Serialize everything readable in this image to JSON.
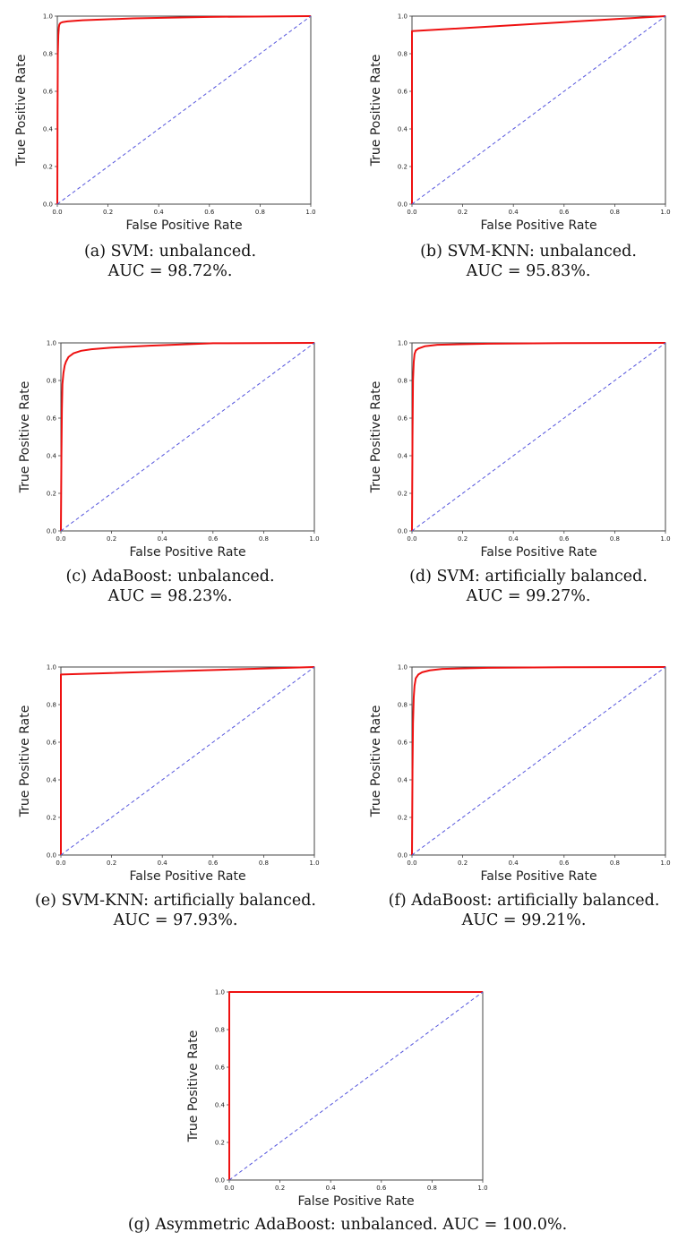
{
  "chart_data": [
    {
      "type": "line",
      "xlabel": "False Positive Rate",
      "ylabel": "True Positive Rate",
      "xlim": [
        0,
        1
      ],
      "ylim": [
        0,
        1
      ],
      "xticks": [
        "0.0",
        "0.2",
        "0.4",
        "0.6",
        "0.8",
        "1.0"
      ],
      "yticks": [
        "0.0",
        "0.2",
        "0.4",
        "0.6",
        "0.8",
        "1.0"
      ],
      "caption": "(a) SVM: unbalanced.",
      "auc_text": "AUC = 98.72%.",
      "series": [
        {
          "color": "#ee1111",
          "style": "solid",
          "x": [
            0,
            0.001,
            0.002,
            0.004,
            0.006,
            0.008,
            0.012,
            0.02,
            0.04,
            0.1,
            0.3,
            0.6,
            1.0
          ],
          "y": [
            0,
            0.5,
            0.8,
            0.9,
            0.94,
            0.955,
            0.963,
            0.968,
            0.972,
            0.978,
            0.988,
            0.996,
            1.0
          ]
        },
        {
          "color": "#5555dd",
          "style": "dashed",
          "x": [
            0,
            1
          ],
          "y": [
            0,
            1
          ]
        }
      ]
    },
    {
      "type": "line",
      "xlabel": "False Positive Rate",
      "ylabel": "True Positive Rate",
      "xlim": [
        0,
        1
      ],
      "ylim": [
        0,
        1
      ],
      "xticks": [
        "0.0",
        "0.2",
        "0.4",
        "0.6",
        "0.8",
        "1.0"
      ],
      "yticks": [
        "0.0",
        "0.2",
        "0.4",
        "0.6",
        "0.8",
        "1.0"
      ],
      "caption": "(b) SVM-KNN: unbalanced.",
      "auc_text": "AUC = 95.83%.",
      "series": [
        {
          "color": "#ee1111",
          "style": "solid",
          "x": [
            0,
            0,
            1.0
          ],
          "y": [
            0,
            0.92,
            1.0
          ]
        },
        {
          "color": "#5555dd",
          "style": "dashed",
          "x": [
            0,
            1
          ],
          "y": [
            0,
            1
          ]
        }
      ]
    },
    {
      "type": "line",
      "xlabel": "False Positive Rate",
      "ylabel": "True Positive Rate",
      "xlim": [
        0,
        1
      ],
      "ylim": [
        0,
        1
      ],
      "xticks": [
        "0.0",
        "0.2",
        "0.4",
        "0.6",
        "0.8",
        "1.0"
      ],
      "yticks": [
        "0.0",
        "0.2",
        "0.4",
        "0.6",
        "0.8",
        "1.0"
      ],
      "caption": "(c) AdaBoost: unbalanced.",
      "auc_text": "AUC = 98.23%.",
      "series": [
        {
          "color": "#ee1111",
          "style": "solid",
          "x": [
            0,
            0.002,
            0.004,
            0.006,
            0.01,
            0.015,
            0.02,
            0.03,
            0.05,
            0.08,
            0.12,
            0.2,
            0.35,
            0.6,
            1.0
          ],
          "y": [
            0,
            0.4,
            0.65,
            0.78,
            0.84,
            0.88,
            0.9,
            0.925,
            0.945,
            0.958,
            0.966,
            0.975,
            0.985,
            0.998,
            1.0
          ]
        },
        {
          "color": "#5555dd",
          "style": "dashed",
          "x": [
            0,
            1
          ],
          "y": [
            0,
            1
          ]
        }
      ]
    },
    {
      "type": "line",
      "xlabel": "False Positive Rate",
      "ylabel": "True Positive Rate",
      "xlim": [
        0,
        1
      ],
      "ylim": [
        0,
        1
      ],
      "xticks": [
        "0.0",
        "0.2",
        "0.4",
        "0.6",
        "0.8",
        "1.0"
      ],
      "yticks": [
        "0.0",
        "0.2",
        "0.4",
        "0.6",
        "0.8",
        "1.0"
      ],
      "caption": "(d) SVM: artificially balanced.",
      "auc_text": "AUC = 99.27%.",
      "series": [
        {
          "color": "#ee1111",
          "style": "solid",
          "x": [
            0,
            0.002,
            0.004,
            0.007,
            0.01,
            0.015,
            0.025,
            0.05,
            0.1,
            0.3,
            0.6,
            1.0
          ],
          "y": [
            0,
            0.5,
            0.8,
            0.9,
            0.94,
            0.96,
            0.97,
            0.982,
            0.99,
            0.996,
            0.999,
            1.0
          ]
        },
        {
          "color": "#5555dd",
          "style": "dashed",
          "x": [
            0,
            1
          ],
          "y": [
            0,
            1
          ]
        }
      ]
    },
    {
      "type": "line",
      "xlabel": "False Positive Rate",
      "ylabel": "True Positive Rate",
      "xlim": [
        0,
        1
      ],
      "ylim": [
        0,
        1
      ],
      "xticks": [
        "0.0",
        "0.2",
        "0.4",
        "0.6",
        "0.8",
        "1.0"
      ],
      "yticks": [
        "0.0",
        "0.2",
        "0.4",
        "0.6",
        "0.8",
        "1.0"
      ],
      "caption": "(e) SVM-KNN: artificially balanced.",
      "auc_text": "AUC = 97.93%.",
      "series": [
        {
          "color": "#ee1111",
          "style": "solid",
          "x": [
            0,
            0,
            1.0
          ],
          "y": [
            0,
            0.96,
            1.0
          ]
        },
        {
          "color": "#5555dd",
          "style": "dashed",
          "x": [
            0,
            1
          ],
          "y": [
            0,
            1
          ]
        }
      ]
    },
    {
      "type": "line",
      "xlabel": "False Positive Rate",
      "ylabel": "True Positive Rate",
      "xlim": [
        0,
        1
      ],
      "ylim": [
        0,
        1
      ],
      "xticks": [
        "0.0",
        "0.2",
        "0.4",
        "0.6",
        "0.8",
        "1.0"
      ],
      "yticks": [
        "0.0",
        "0.2",
        "0.4",
        "0.6",
        "0.8",
        "1.0"
      ],
      "caption": "(f) AdaBoost: artificially balanced.",
      "auc_text": "AUC = 99.21%.",
      "series": [
        {
          "color": "#ee1111",
          "style": "solid",
          "x": [
            0,
            0.002,
            0.004,
            0.007,
            0.01,
            0.015,
            0.025,
            0.04,
            0.07,
            0.12,
            0.3,
            0.6,
            1.0
          ],
          "y": [
            0,
            0.45,
            0.7,
            0.84,
            0.9,
            0.94,
            0.96,
            0.972,
            0.982,
            0.99,
            0.996,
            0.999,
            1.0
          ]
        },
        {
          "color": "#5555dd",
          "style": "dashed",
          "x": [
            0,
            1
          ],
          "y": [
            0,
            1
          ]
        }
      ]
    },
    {
      "type": "line",
      "xlabel": "False Positive Rate",
      "ylabel": "True Positive Rate",
      "xlim": [
        0,
        1
      ],
      "ylim": [
        0,
        1
      ],
      "xticks": [
        "0.0",
        "0.2",
        "0.4",
        "0.6",
        "0.8",
        "1.0"
      ],
      "yticks": [
        "0.0",
        "0.2",
        "0.4",
        "0.6",
        "0.8",
        "1.0"
      ],
      "caption": "(g) Asymmetric AdaBoost: unbalanced. AUC = 100.0%.",
      "auc_text": "",
      "series": [
        {
          "color": "#ee1111",
          "style": "solid",
          "x": [
            0,
            0,
            1.0
          ],
          "y": [
            0,
            1.0,
            1.0
          ]
        },
        {
          "color": "#5555dd",
          "style": "dashed",
          "x": [
            0,
            1
          ],
          "y": [
            0,
            1
          ]
        }
      ]
    }
  ]
}
